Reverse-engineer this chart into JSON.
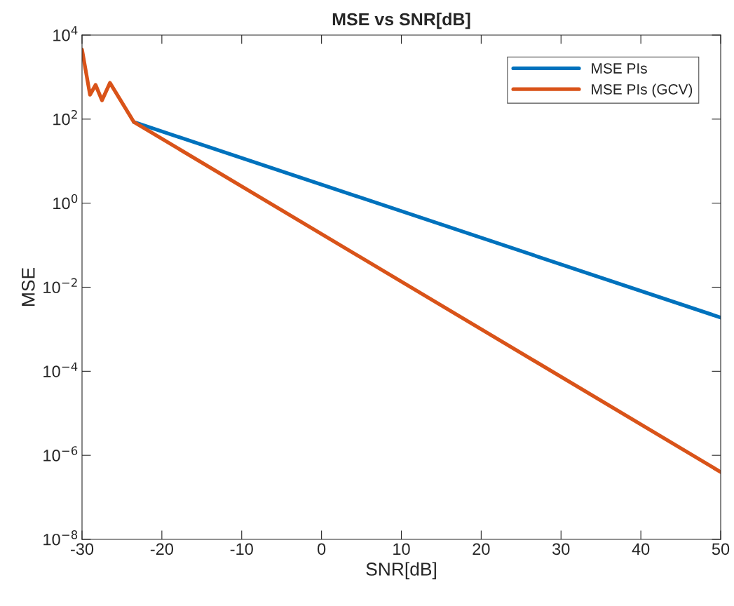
{
  "chart_data": {
    "type": "line",
    "title": "MSE vs SNR[dB]",
    "xlabel": "SNR[dB]",
    "ylabel": "MSE",
    "x": [
      -30,
      -29,
      -28.3,
      -27.5,
      -26.5,
      -23.5,
      50
    ],
    "series": [
      {
        "name": "MSE PIs",
        "color": "#0072bd",
        "values": [
          null,
          null,
          null,
          null,
          null,
          85,
          0.0019
        ]
      },
      {
        "name": "MSE PIs (GCV)",
        "color": "#d95319",
        "values": [
          4500,
          380,
          650,
          280,
          730,
          85,
          4e-07
        ]
      }
    ],
    "log": "y",
    "xlim": [
      -30,
      50
    ],
    "xticks": [
      -30,
      -20,
      -10,
      0,
      10,
      20,
      30,
      40,
      50
    ],
    "ylim": [
      1e-08,
      10000
    ],
    "yticks": [
      {
        "value": 1e-08,
        "label": "10$^{−8}$"
      },
      {
        "value": 1e-06,
        "label": "10$^{−6}$"
      },
      {
        "value": 0.0001,
        "label": "10$^{−4}$"
      },
      {
        "value": 0.01,
        "label": "10$^{−2}$"
      },
      {
        "value": 1,
        "label": "10$^{0}$"
      },
      {
        "value": 100,
        "label": "10$^{2}$"
      },
      {
        "value": 10000,
        "label": "10$^{4}$"
      }
    ],
    "grid": false,
    "legend": "top right",
    "line_style": "solid",
    "marker": "none"
  }
}
